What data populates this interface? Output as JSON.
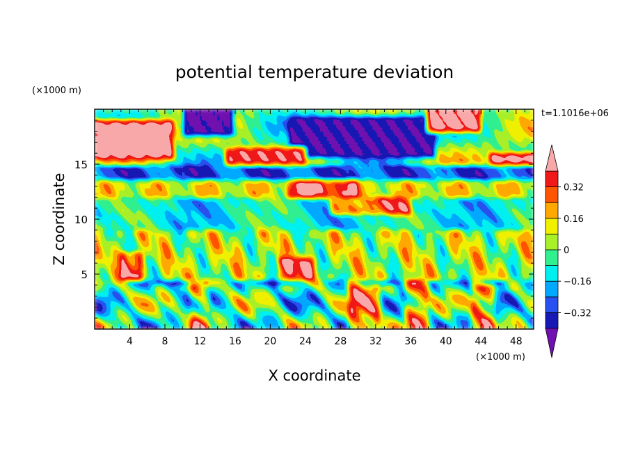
{
  "chart_data": {
    "type": "heatmap",
    "title": "potential temperature deviation",
    "xlabel": "X coordinate",
    "ylabel": "Z coordinate",
    "x_units": "(×1000 m)",
    "y_units": "(×1000 m)",
    "time_label": "t=1.1016e+06",
    "xlim": [
      0,
      50
    ],
    "ylim": [
      0,
      20
    ],
    "x_ticks": [
      4,
      8,
      12,
      16,
      20,
      24,
      28,
      32,
      36,
      40,
      44,
      48
    ],
    "y_ticks": [
      5,
      10,
      15
    ],
    "x_minor_step": 1,
    "y_minor_step": 1,
    "colorbar": {
      "levels": [
        -0.4,
        -0.32,
        -0.24,
        -0.16,
        -0.08,
        0,
        0.08,
        0.16,
        0.24,
        0.32,
        0.4
      ],
      "labels": [
        {
          "value": 0.32,
          "text": "0.32"
        },
        {
          "value": 0.16,
          "text": "0.16"
        },
        {
          "value": 0,
          "text": "0"
        },
        {
          "value": -0.16,
          "text": "−0.16"
        },
        {
          "value": -0.32,
          "text": "−0.32"
        }
      ],
      "colors": [
        "#7010b0",
        "#1818b4",
        "#2850f0",
        "#00a8ff",
        "#00f0f0",
        "#30f090",
        "#a8f028",
        "#f0f000",
        "#ffa800",
        "#ff5400",
        "#f01818",
        "#f8a8a8"
      ]
    },
    "grid": false,
    "legend": "right"
  }
}
